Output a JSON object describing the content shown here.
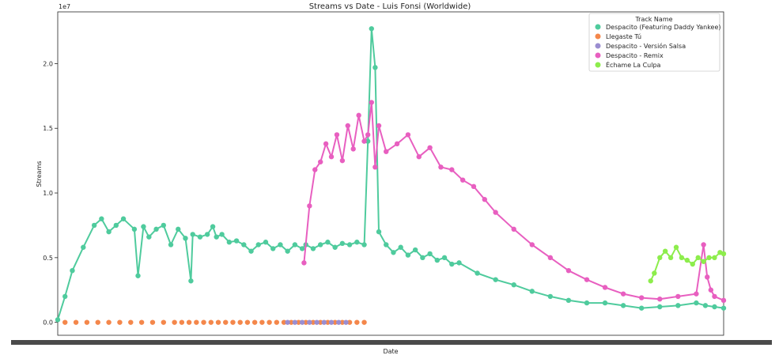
{
  "chart_data": {
    "type": "line",
    "title": "Streams vs Date - Luis Fonsi (Worldwide)",
    "xlabel": "Date",
    "ylabel": "Streams",
    "y_offset_label": "1e7",
    "ylim": [
      -0.1,
      2.4
    ],
    "y_scale_note": "values in units of 1e7",
    "yticks": [
      "0.0",
      "0.5",
      "1.0",
      "1.5",
      "2.0"
    ],
    "ytick_values": [
      0,
      0.5,
      1.0,
      1.5,
      2.0
    ],
    "x_unit": "day index (tick labels illegible/overlapping)",
    "xlim": [
      0,
      365
    ],
    "grid": false,
    "legend_placement": "top-right",
    "legend_title": "Track Name",
    "series": [
      {
        "name": "Despacito (Featuring Daddy Yankee)",
        "color": "#4fcb9d",
        "x": [
          0,
          4,
          8,
          14,
          20,
          24,
          28,
          32,
          36,
          42,
          44,
          47,
          50,
          54,
          58,
          62,
          66,
          70,
          73,
          74,
          78,
          82,
          85,
          87,
          90,
          94,
          98,
          102,
          106,
          110,
          114,
          118,
          122,
          126,
          130,
          134,
          136,
          140,
          144,
          148,
          152,
          156,
          160,
          164,
          168,
          170,
          172,
          174,
          176,
          180,
          184,
          188,
          192,
          196,
          200,
          204,
          208,
          212,
          216,
          220,
          230,
          240,
          250,
          260,
          270,
          280,
          290,
          300,
          310,
          320,
          330,
          340,
          350,
          355,
          360,
          365
        ],
        "values": [
          0.02,
          0.2,
          0.4,
          0.58,
          0.75,
          0.8,
          0.7,
          0.75,
          0.8,
          0.72,
          0.36,
          0.74,
          0.66,
          0.72,
          0.75,
          0.6,
          0.72,
          0.65,
          0.32,
          0.68,
          0.66,
          0.68,
          0.74,
          0.66,
          0.68,
          0.62,
          0.63,
          0.6,
          0.55,
          0.6,
          0.62,
          0.57,
          0.6,
          0.55,
          0.6,
          0.57,
          0.6,
          0.57,
          0.6,
          0.62,
          0.58,
          0.61,
          0.6,
          0.62,
          0.6,
          1.4,
          2.27,
          1.97,
          0.7,
          0.6,
          0.54,
          0.58,
          0.52,
          0.56,
          0.5,
          0.53,
          0.48,
          0.5,
          0.45,
          0.46,
          0.38,
          0.33,
          0.29,
          0.24,
          0.2,
          0.17,
          0.15,
          0.15,
          0.13,
          0.11,
          0.12,
          0.13,
          0.15,
          0.13,
          0.12,
          0.11
        ]
      },
      {
        "name": "Llegaste Tú",
        "color": "#f4874b",
        "x": [
          4,
          10,
          16,
          22,
          28,
          34,
          40,
          46,
          52,
          58,
          64,
          68,
          72,
          76,
          80,
          84,
          88,
          92,
          96,
          100,
          104,
          108,
          112,
          116,
          120,
          124,
          128,
          132,
          136,
          140,
          144,
          148,
          152,
          156,
          160,
          164,
          168
        ],
        "values": [
          0,
          0,
          0,
          0,
          0,
          0,
          0,
          0,
          0,
          0,
          0,
          0,
          0,
          0,
          0,
          0,
          0,
          0,
          0,
          0,
          0,
          0,
          0,
          0,
          0,
          0,
          0,
          0,
          0,
          0,
          0,
          0,
          0,
          0,
          0,
          0,
          0
        ]
      },
      {
        "name": "Despacito - Versión Salsa",
        "color": "#9b8ed1",
        "x": [
          126,
          130,
          134,
          138,
          142,
          146,
          150,
          154,
          158
        ],
        "values": [
          0,
          0,
          0,
          0,
          0,
          0,
          0,
          0,
          0
        ]
      },
      {
        "name": "Despacito - Remix",
        "color": "#e85fc0",
        "x": [
          135,
          138,
          141,
          144,
          147,
          150,
          153,
          156,
          159,
          162,
          165,
          168,
          170,
          172,
          174,
          176,
          180,
          186,
          192,
          198,
          204,
          210,
          216,
          222,
          228,
          234,
          240,
          250,
          260,
          270,
          280,
          290,
          300,
          310,
          320,
          330,
          340,
          350,
          354,
          356,
          358,
          360,
          365
        ],
        "values": [
          0.46,
          0.9,
          1.18,
          1.24,
          1.38,
          1.28,
          1.45,
          1.25,
          1.52,
          1.34,
          1.6,
          1.4,
          1.45,
          1.7,
          1.2,
          1.52,
          1.32,
          1.38,
          1.45,
          1.28,
          1.35,
          1.2,
          1.18,
          1.1,
          1.05,
          0.95,
          0.85,
          0.72,
          0.6,
          0.5,
          0.4,
          0.33,
          0.27,
          0.22,
          0.19,
          0.18,
          0.2,
          0.22,
          0.6,
          0.35,
          0.25,
          0.2,
          0.17
        ]
      },
      {
        "name": "Échame La Culpa",
        "color": "#8ded4c",
        "x": [
          325,
          327,
          330,
          333,
          336,
          339,
          342,
          345,
          348,
          351,
          354,
          357,
          360,
          363,
          365
        ],
        "values": [
          0.32,
          0.38,
          0.5,
          0.55,
          0.5,
          0.58,
          0.5,
          0.48,
          0.45,
          0.5,
          0.47,
          0.5,
          0.5,
          0.54,
          0.53
        ]
      }
    ]
  }
}
